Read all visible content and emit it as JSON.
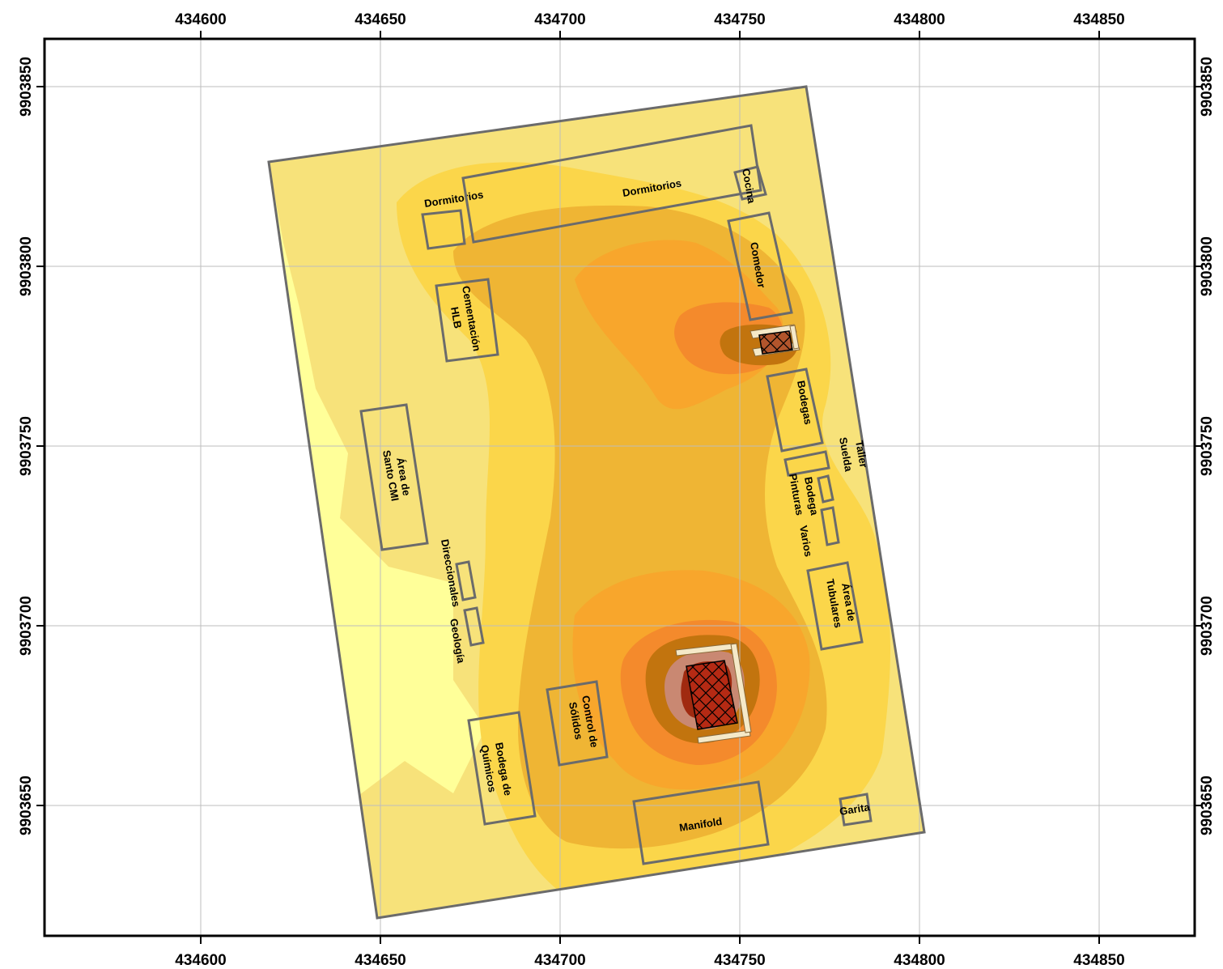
{
  "map": {
    "x_ticks": [
      "434600",
      "434650",
      "434700",
      "434750",
      "434800",
      "434850"
    ],
    "y_ticks": [
      "9903850",
      "9903800",
      "9903750",
      "9903700",
      "9903650"
    ],
    "colors": {
      "background": "#ffff99",
      "zone1": "#f7e27a",
      "zone2": "#fbd64a",
      "zone3": "#efb534",
      "zone4": "#f8a62c",
      "zone5": "#f48a2c",
      "zone6": "#c2740e",
      "zone7": "#c98872",
      "zone8": "#a02a10",
      "outline": "#6b6b6b",
      "well_pad": "#f5e9c8"
    },
    "buildings": {
      "dormitorios_small": [
        "Dormitorios"
      ],
      "dormitorios_long": [
        "Dormitorios"
      ],
      "cocina": [
        "Cocina"
      ],
      "comedor": [
        "Comedor"
      ],
      "cementacion": [
        "Cementación",
        "HLB"
      ],
      "bodegas": [
        "Bodegas"
      ],
      "taller": [
        "Taller",
        "Suelda"
      ],
      "bodega_pinturas": [
        "Bodega",
        "Pinturas"
      ],
      "varios": [
        "Varios"
      ],
      "area_santo": [
        "Área de",
        "Santo CMI"
      ],
      "direccionales": [
        "Direccionales"
      ],
      "geologia": [
        "Geología"
      ],
      "area_tubulares": [
        "Área de",
        "Tubulares"
      ],
      "control_solidos": [
        "Control de",
        "Sólidos"
      ],
      "bodega_quimicos": [
        "Bodega de",
        "Químicos"
      ],
      "manifold": [
        "Manifold"
      ],
      "garita": [
        "Garita"
      ]
    }
  }
}
